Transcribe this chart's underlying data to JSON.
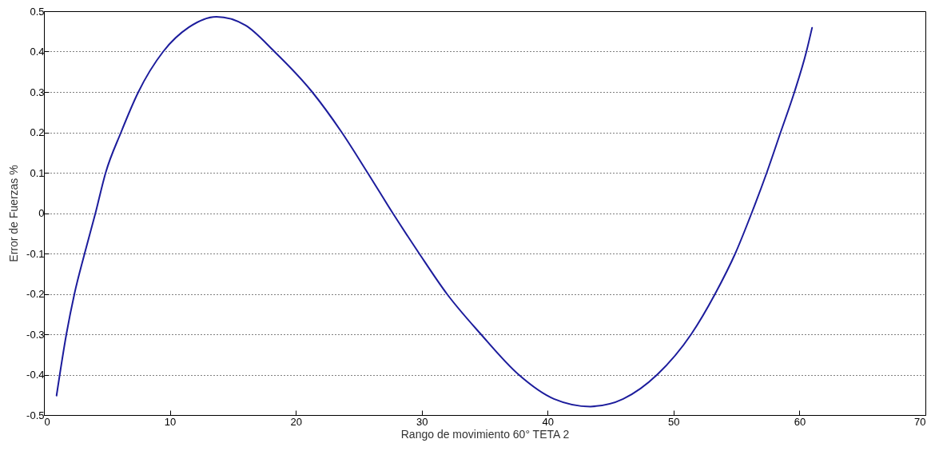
{
  "chart_data": {
    "type": "line",
    "xlabel": "Rango de movimiento 60° TETA 2",
    "ylabel": "Error de Fuerzas %",
    "x": [
      1,
      1.78,
      2.42,
      3.23,
      4.09,
      4.9,
      6.12,
      7.5,
      9.47,
      11.5,
      13.7,
      16,
      18.3,
      21.3,
      23.65,
      25.7,
      27.7,
      29.8,
      32,
      34.7,
      37.7,
      40.5,
      43.4,
      46,
      48.7,
      51.4,
      53.3,
      54.9,
      56.2,
      57.4,
      58.5,
      59.6,
      60.55,
      61
    ],
    "series": [
      {
        "color": "#1c1c9c",
        "values": [
          -0.452,
          -0.3,
          -0.2,
          -0.1,
          0,
          0.1,
          0.2,
          0.3,
          0.4,
          0.46,
          0.486,
          0.465,
          0.4,
          0.3,
          0.2,
          0.1,
          0,
          -0.1,
          -0.2,
          -0.3,
          -0.4,
          -0.46,
          -0.479,
          -0.46,
          -0.4,
          -0.3,
          -0.2,
          -0.1,
          0,
          0.1,
          0.2,
          0.3,
          0.4,
          0.459
        ]
      }
    ],
    "xlim": [
      0,
      70
    ],
    "xticks": [
      0,
      10,
      20,
      30,
      40,
      50,
      60,
      70
    ],
    "ylim": [
      -0.5,
      0.5
    ],
    "yticks": [
      -0.5,
      -0.4,
      -0.3,
      -0.2,
      -0.1,
      0,
      0.1,
      0.2,
      0.3,
      0.4,
      0.5
    ],
    "grid": "y",
    "line_style": "solid"
  }
}
